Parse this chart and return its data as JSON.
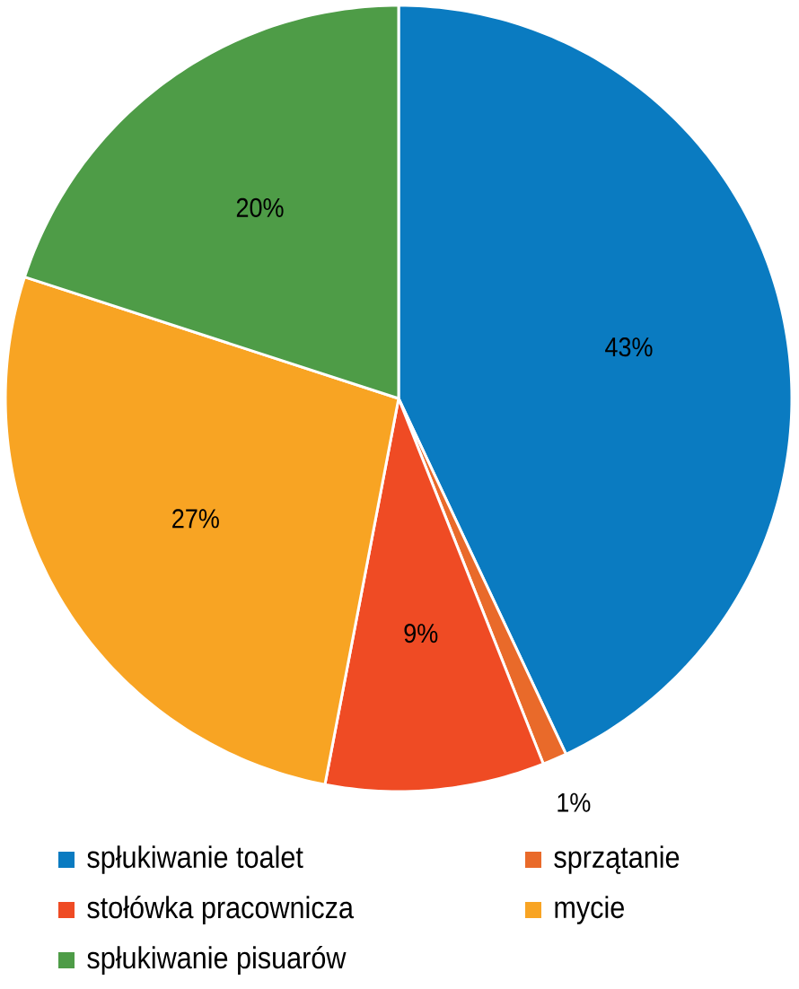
{
  "chart_data": {
    "type": "pie",
    "categories": [
      "spłukiwanie toalet",
      "sprzątanie",
      "stołówka pracownicza",
      "mycie",
      "spłukiwanie pisuarów"
    ],
    "values": [
      43,
      1,
      9,
      27,
      20
    ],
    "colors": [
      "#0a7bc1",
      "#e96a2a",
      "#ef4b24",
      "#f8a423",
      "#4e9c47"
    ],
    "value_labels": [
      "43%",
      "1%",
      "9%",
      "27%",
      "20%"
    ],
    "legend": "bottom"
  }
}
